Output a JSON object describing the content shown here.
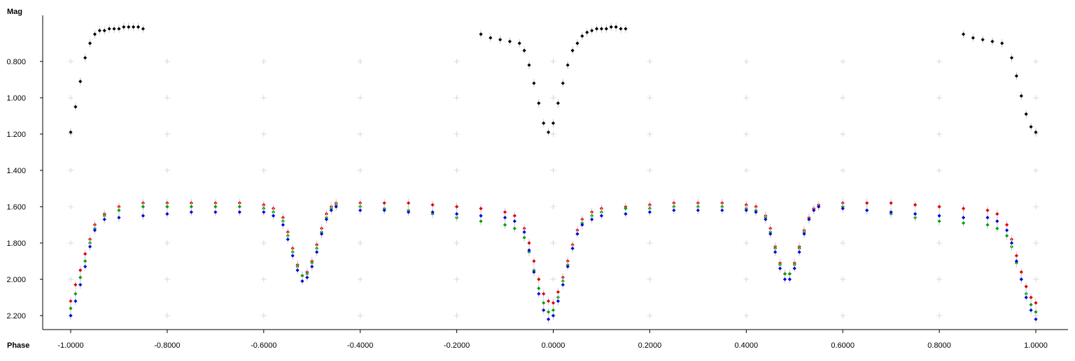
{
  "chart_data": {
    "type": "scatter",
    "title": "",
    "ylabel": "Mag",
    "xlabel": "Phase",
    "xlim": [
      -1.09,
      1.07
    ],
    "ylim": [
      2.27,
      0.5
    ],
    "y_inverted": true,
    "grid": true,
    "grid_style": "plus-markers",
    "x_ticks": [
      -1.0,
      -0.8,
      -0.6,
      -0.4,
      -0.2,
      0.0,
      0.2,
      0.4,
      0.6,
      0.8,
      1.0
    ],
    "x_tick_labels": [
      "-1.0000",
      "-0.8000",
      "-0.6000",
      "-0.4000",
      "-0.2000",
      "0.0000",
      "0.2000",
      "0.4000",
      "0.6000",
      "0.8000",
      "1.0000"
    ],
    "y_ticks": [
      0.8,
      1.0,
      1.2,
      1.4,
      1.6,
      1.8,
      2.0,
      2.2
    ],
    "y_tick_labels": [
      "0.800",
      "1.000",
      "1.200",
      "1.400",
      "1.600",
      "1.800",
      "2.000",
      "2.200"
    ],
    "series": [
      {
        "color": "#000000",
        "x": [
          -1.0,
          -0.99,
          -0.98,
          -0.97,
          -0.96,
          -0.95,
          -0.94,
          -0.93,
          -0.92,
          -0.91,
          -0.9,
          -0.89,
          -0.88,
          -0.87,
          -0.86,
          -0.85,
          -0.15,
          -0.13,
          -0.11,
          -0.09,
          -0.07,
          -0.06,
          -0.05,
          -0.04,
          -0.03,
          -0.02,
          -0.01,
          0.0,
          0.01,
          0.02,
          0.03,
          0.04,
          0.05,
          0.06,
          0.07,
          0.08,
          0.09,
          0.1,
          0.11,
          0.12,
          0.13,
          0.14,
          0.15,
          0.85,
          0.87,
          0.89,
          0.91,
          0.93,
          0.95,
          0.96,
          0.97,
          0.98,
          0.99,
          1.0
        ],
        "y": [
          1.19,
          1.05,
          0.91,
          0.78,
          0.7,
          0.65,
          0.63,
          0.63,
          0.62,
          0.62,
          0.62,
          0.61,
          0.61,
          0.61,
          0.61,
          0.62,
          0.65,
          0.67,
          0.68,
          0.69,
          0.7,
          0.74,
          0.82,
          0.92,
          1.03,
          1.14,
          1.19,
          1.14,
          1.03,
          0.92,
          0.82,
          0.74,
          0.7,
          0.66,
          0.64,
          0.63,
          0.62,
          0.62,
          0.62,
          0.61,
          0.61,
          0.62,
          0.62,
          0.65,
          0.67,
          0.68,
          0.69,
          0.7,
          0.78,
          0.88,
          0.99,
          1.09,
          1.16,
          1.19
        ]
      },
      {
        "color": "#e00000",
        "x": [
          -1.0,
          -0.99,
          -0.98,
          -0.97,
          -0.96,
          -0.95,
          -0.93,
          -0.9,
          -0.85,
          -0.8,
          -0.75,
          -0.7,
          -0.65,
          -0.6,
          -0.58,
          -0.56,
          -0.55,
          -0.54,
          -0.53,
          -0.52,
          -0.51,
          -0.5,
          -0.49,
          -0.48,
          -0.47,
          -0.46,
          -0.45,
          -0.4,
          -0.35,
          -0.3,
          -0.25,
          -0.2,
          -0.15,
          -0.1,
          -0.08,
          -0.06,
          -0.05,
          -0.04,
          -0.03,
          -0.02,
          -0.01,
          0.0,
          0.01,
          0.02,
          0.03,
          0.04,
          0.05,
          0.06,
          0.08,
          0.1,
          0.15,
          0.2,
          0.25,
          0.3,
          0.35,
          0.4,
          0.42,
          0.44,
          0.45,
          0.46,
          0.47,
          0.48,
          0.49,
          0.5,
          0.51,
          0.52,
          0.53,
          0.54,
          0.55,
          0.6,
          0.65,
          0.7,
          0.75,
          0.8,
          0.85,
          0.9,
          0.92,
          0.94,
          0.95,
          0.96,
          0.97,
          0.98,
          0.99,
          1.0
        ],
        "y": [
          2.12,
          2.03,
          1.95,
          1.86,
          1.78,
          1.7,
          1.64,
          1.6,
          1.58,
          1.58,
          1.58,
          1.58,
          1.58,
          1.59,
          1.61,
          1.66,
          1.74,
          1.83,
          1.92,
          1.98,
          1.96,
          1.9,
          1.81,
          1.72,
          1.64,
          1.6,
          1.58,
          1.58,
          1.58,
          1.58,
          1.59,
          1.6,
          1.61,
          1.63,
          1.65,
          1.72,
          1.8,
          1.9,
          2.0,
          2.08,
          2.12,
          2.13,
          2.07,
          1.99,
          1.9,
          1.81,
          1.73,
          1.67,
          1.63,
          1.61,
          1.6,
          1.59,
          1.58,
          1.58,
          1.58,
          1.59,
          1.6,
          1.65,
          1.72,
          1.82,
          1.91,
          1.97,
          1.97,
          1.91,
          1.82,
          1.73,
          1.66,
          1.61,
          1.59,
          1.58,
          1.58,
          1.58,
          1.59,
          1.6,
          1.61,
          1.62,
          1.64,
          1.7,
          1.78,
          1.87,
          1.96,
          2.04,
          2.1,
          2.13
        ]
      },
      {
        "color": "#00a000",
        "x": [
          -1.0,
          -0.99,
          -0.98,
          -0.97,
          -0.96,
          -0.95,
          -0.93,
          -0.9,
          -0.85,
          -0.8,
          -0.75,
          -0.7,
          -0.65,
          -0.6,
          -0.58,
          -0.56,
          -0.55,
          -0.54,
          -0.53,
          -0.52,
          -0.51,
          -0.5,
          -0.49,
          -0.48,
          -0.47,
          -0.46,
          -0.45,
          -0.4,
          -0.35,
          -0.3,
          -0.25,
          -0.2,
          -0.15,
          -0.1,
          -0.08,
          -0.06,
          -0.05,
          -0.04,
          -0.03,
          -0.02,
          -0.01,
          0.0,
          0.01,
          0.02,
          0.03,
          0.04,
          0.05,
          0.06,
          0.08,
          0.1,
          0.15,
          0.2,
          0.25,
          0.3,
          0.35,
          0.4,
          0.42,
          0.44,
          0.45,
          0.46,
          0.47,
          0.48,
          0.49,
          0.5,
          0.51,
          0.52,
          0.53,
          0.54,
          0.55,
          0.6,
          0.65,
          0.7,
          0.75,
          0.8,
          0.85,
          0.9,
          0.92,
          0.94,
          0.95,
          0.96,
          0.97,
          0.98,
          0.99,
          1.0
        ],
        "y": [
          2.16,
          2.08,
          1.99,
          1.9,
          1.8,
          1.72,
          1.65,
          1.62,
          1.6,
          1.6,
          1.6,
          1.6,
          1.6,
          1.61,
          1.63,
          1.68,
          1.76,
          1.85,
          1.93,
          1.98,
          1.97,
          1.91,
          1.83,
          1.74,
          1.66,
          1.61,
          1.59,
          1.6,
          1.61,
          1.62,
          1.64,
          1.66,
          1.68,
          1.7,
          1.72,
          1.77,
          1.85,
          1.95,
          2.05,
          2.13,
          2.18,
          2.17,
          2.1,
          2.01,
          1.92,
          1.83,
          1.75,
          1.69,
          1.65,
          1.63,
          1.61,
          1.61,
          1.6,
          1.6,
          1.6,
          1.61,
          1.62,
          1.66,
          1.74,
          1.83,
          1.92,
          1.97,
          1.97,
          1.92,
          1.83,
          1.74,
          1.67,
          1.62,
          1.6,
          1.6,
          1.62,
          1.64,
          1.66,
          1.68,
          1.69,
          1.7,
          1.72,
          1.76,
          1.82,
          1.91,
          2.0,
          2.08,
          2.14,
          2.18
        ]
      },
      {
        "color": "#0000e0",
        "x": [
          -1.0,
          -0.99,
          -0.98,
          -0.97,
          -0.96,
          -0.95,
          -0.93,
          -0.9,
          -0.85,
          -0.8,
          -0.75,
          -0.7,
          -0.65,
          -0.6,
          -0.58,
          -0.56,
          -0.55,
          -0.54,
          -0.53,
          -0.52,
          -0.51,
          -0.5,
          -0.49,
          -0.48,
          -0.47,
          -0.46,
          -0.45,
          -0.4,
          -0.35,
          -0.3,
          -0.25,
          -0.2,
          -0.15,
          -0.1,
          -0.08,
          -0.06,
          -0.05,
          -0.04,
          -0.03,
          -0.02,
          -0.01,
          0.0,
          0.01,
          0.02,
          0.03,
          0.04,
          0.05,
          0.06,
          0.08,
          0.1,
          0.15,
          0.2,
          0.25,
          0.3,
          0.35,
          0.4,
          0.42,
          0.44,
          0.45,
          0.46,
          0.47,
          0.48,
          0.49,
          0.5,
          0.51,
          0.52,
          0.53,
          0.54,
          0.55,
          0.6,
          0.65,
          0.7,
          0.75,
          0.8,
          0.85,
          0.9,
          0.92,
          0.94,
          0.95,
          0.96,
          0.97,
          0.98,
          0.99,
          1.0
        ],
        "y": [
          2.2,
          2.12,
          2.03,
          1.93,
          1.82,
          1.73,
          1.67,
          1.66,
          1.65,
          1.64,
          1.63,
          1.63,
          1.63,
          1.63,
          1.65,
          1.7,
          1.78,
          1.87,
          1.95,
          2.01,
          1.99,
          1.93,
          1.85,
          1.75,
          1.67,
          1.62,
          1.6,
          1.62,
          1.62,
          1.63,
          1.63,
          1.64,
          1.65,
          1.66,
          1.68,
          1.74,
          1.84,
          1.96,
          2.08,
          2.17,
          2.22,
          2.2,
          2.12,
          2.03,
          1.93,
          1.83,
          1.75,
          1.7,
          1.67,
          1.65,
          1.64,
          1.63,
          1.62,
          1.62,
          1.62,
          1.62,
          1.63,
          1.67,
          1.75,
          1.85,
          1.94,
          2.0,
          2.0,
          1.94,
          1.85,
          1.75,
          1.67,
          1.62,
          1.6,
          1.61,
          1.62,
          1.63,
          1.64,
          1.65,
          1.66,
          1.66,
          1.68,
          1.73,
          1.8,
          1.9,
          2.0,
          2.1,
          2.17,
          2.22
        ]
      }
    ]
  }
}
